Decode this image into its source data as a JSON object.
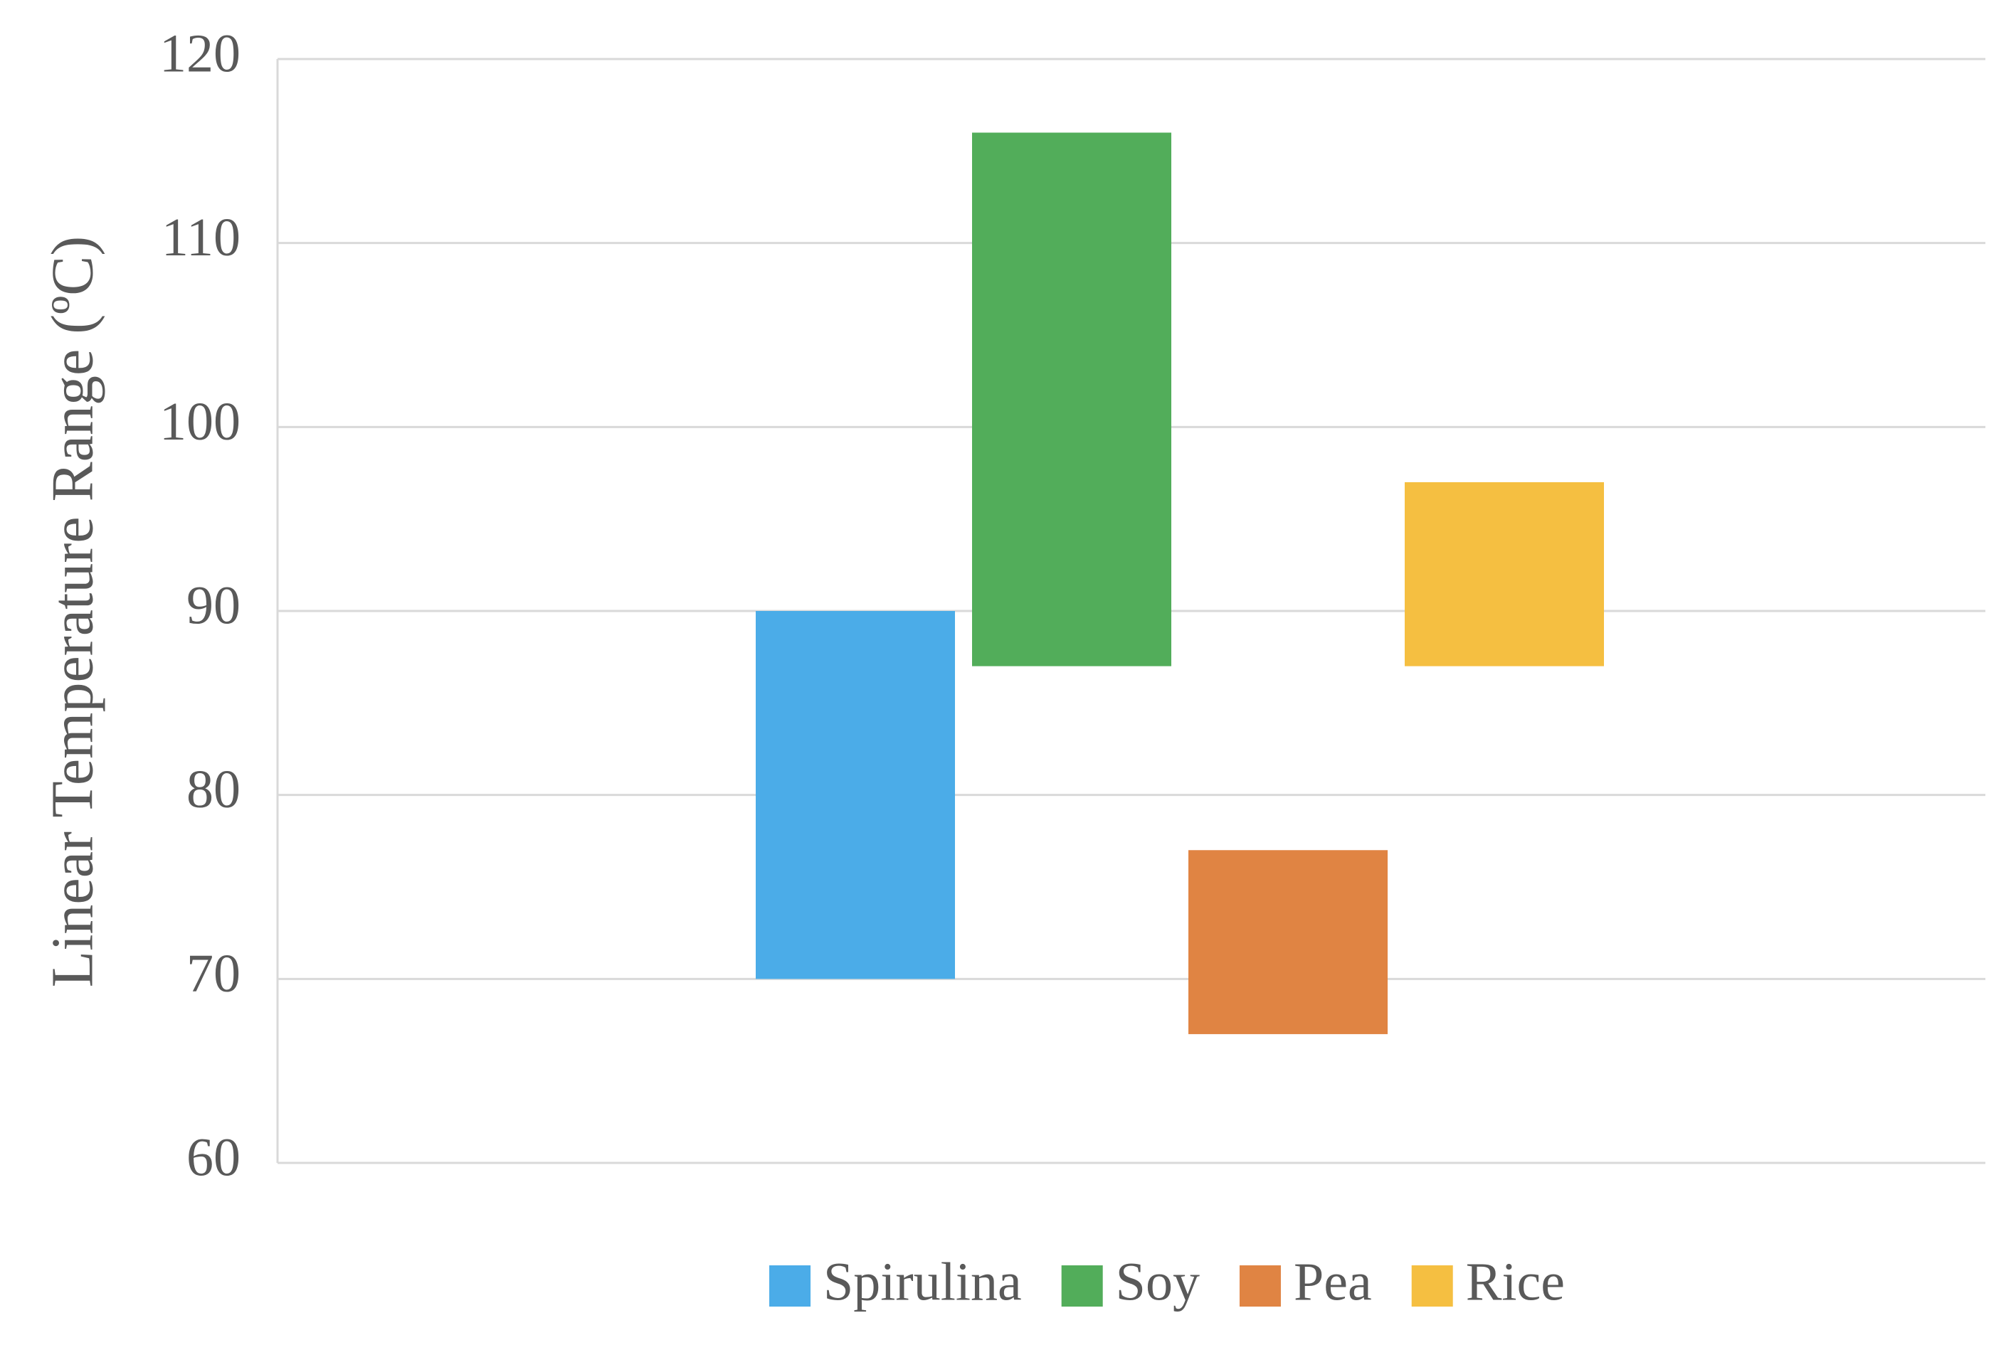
{
  "chart_data": {
    "type": "bar",
    "subtype": "floating-range",
    "title": "",
    "xlabel": "",
    "ylabel": "Linear Temperature Range (ºC)",
    "ylim": [
      60,
      120
    ],
    "yticks": [
      60,
      70,
      80,
      90,
      100,
      110,
      120
    ],
    "yticks_text": [
      "60",
      "70",
      "80",
      "90",
      "100",
      "110",
      "120"
    ],
    "grid": true,
    "legend_position": "bottom",
    "series": [
      {
        "name": "Spirulina",
        "low": 70,
        "high": 90,
        "color": "#4BACE8"
      },
      {
        "name": "Soy",
        "low": 87,
        "high": 116,
        "color": "#52AD5A"
      },
      {
        "name": "Pea",
        "low": 67,
        "high": 77,
        "color": "#E08443"
      },
      {
        "name": "Rice",
        "low": 87,
        "high": 97,
        "color": "#F5BF41"
      }
    ]
  }
}
